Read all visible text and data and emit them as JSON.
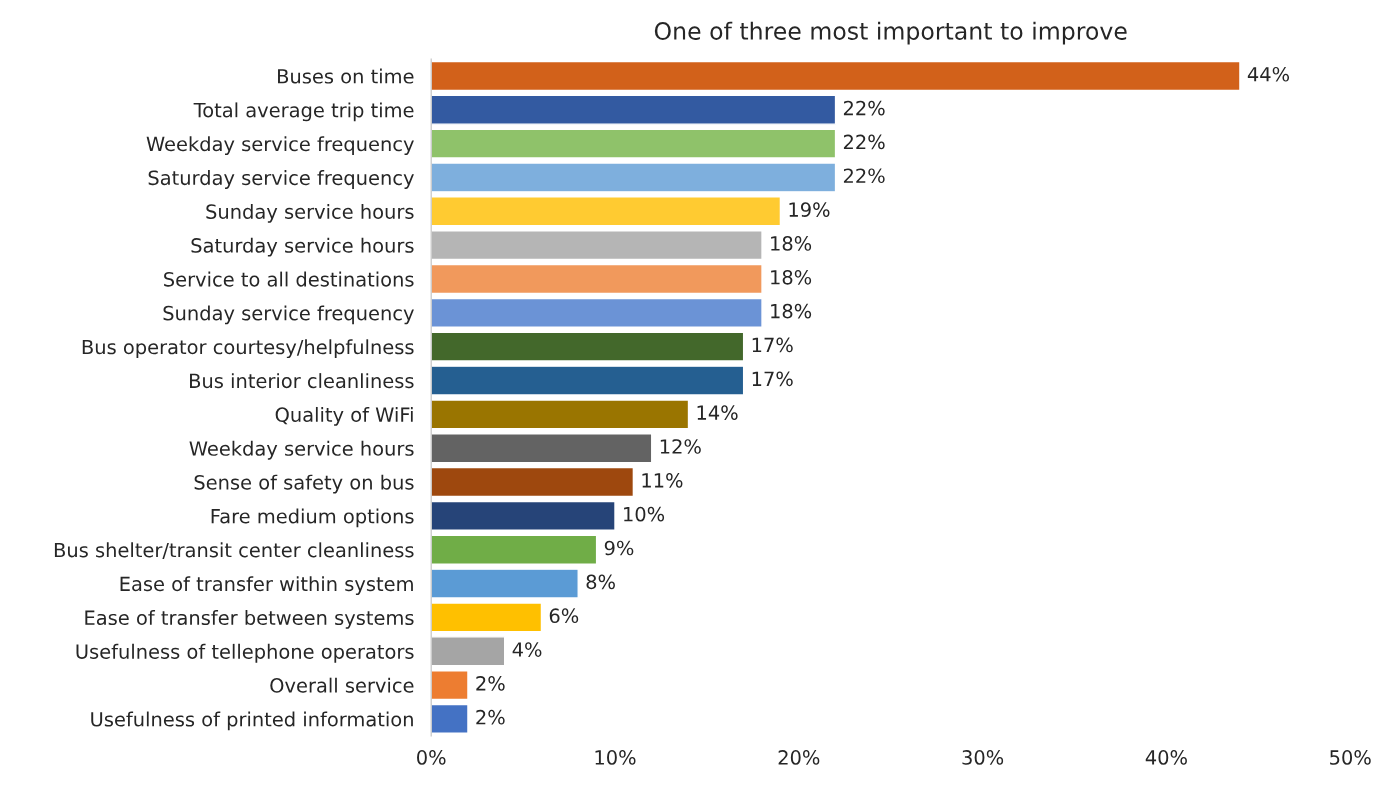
{
  "chart_data": {
    "type": "bar",
    "orientation": "horizontal",
    "title": "One of three most important to improve",
    "categories": [
      "Buses on time",
      "Total average trip time",
      "Weekday service frequency",
      "Saturday service frequency",
      "Sunday service hours",
      "Saturday service hours",
      "Service to all destinations",
      "Sunday service frequency",
      "Bus operator courtesy/helpfulness",
      "Bus interior cleanliness",
      "Quality of WiFi",
      "Weekday service hours",
      "Sense of safety on bus",
      "Fare medium options",
      "Bus shelter/transit center cleanliness",
      "Ease of transfer within system",
      "Ease of transfer between systems",
      "Usefulness of tellephone operators",
      "Overall service",
      "Usefulness of printed information"
    ],
    "values": [
      44,
      22,
      22,
      22,
      19,
      18,
      18,
      18,
      17,
      17,
      14,
      12,
      11,
      10,
      9,
      8,
      6,
      4,
      2,
      2
    ],
    "value_labels": [
      "44%",
      "22%",
      "22%",
      "22%",
      "19%",
      "18%",
      "18%",
      "18%",
      "17%",
      "17%",
      "14%",
      "12%",
      "11%",
      "10%",
      "9%",
      "8%",
      "6%",
      "4%",
      "2%",
      "2%"
    ],
    "colors": [
      "#d2611a",
      "#335aa1",
      "#8fc26a",
      "#7eafdd",
      "#ffcb31",
      "#b5b5b5",
      "#f1995c",
      "#6b93d6",
      "#43682b",
      "#255f91",
      "#9a7500",
      "#636363",
      "#9e480e",
      "#264478",
      "#70ad47",
      "#5b9bd5",
      "#ffc000",
      "#a5a5a5",
      "#ed7d31",
      "#4472c4"
    ],
    "xlim": [
      0,
      50
    ],
    "xticks": [
      {
        "value": 0,
        "label": "0%"
      },
      {
        "value": 10,
        "label": "10%"
      },
      {
        "value": 20,
        "label": "20%"
      },
      {
        "value": 30,
        "label": "30%"
      },
      {
        "value": 40,
        "label": "40%"
      },
      {
        "value": 50,
        "label": "50%"
      }
    ],
    "grid": false,
    "legend": false
  }
}
